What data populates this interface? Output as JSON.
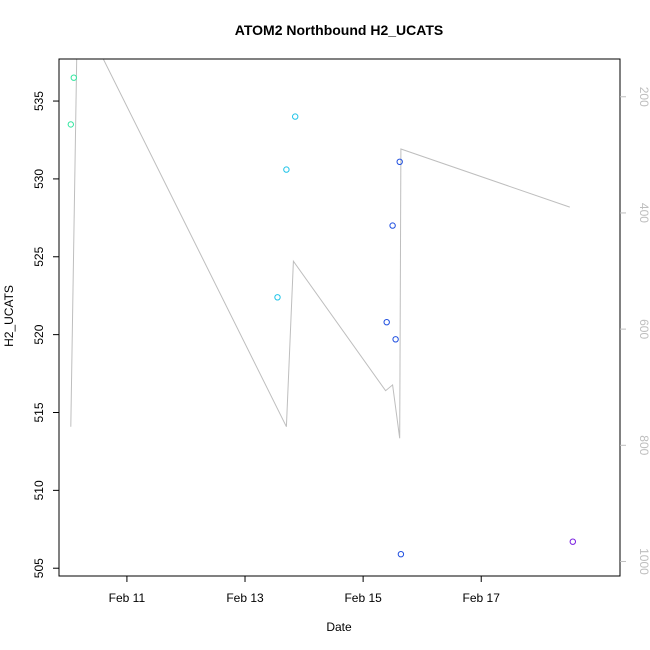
{
  "chart_data": {
    "type": "scatter",
    "title": "ATOM2 Northbound H2_UCATS",
    "xlabel": "Date",
    "ylabel": "H2_UCATS",
    "x_ticks": [
      "Feb 11",
      "Feb 13",
      "Feb 15",
      "Feb 17"
    ],
    "x_tick_days": [
      11,
      13,
      15,
      17
    ],
    "xlim": [
      9.85,
      19.35
    ],
    "ylim": [
      504.5,
      537.7
    ],
    "y_ticks": [
      505,
      510,
      515,
      520,
      525,
      530,
      535
    ],
    "y2lim": [
      1025,
      135
    ],
    "y2_ticks": [
      200,
      400,
      600,
      800,
      1000
    ],
    "points": [
      {
        "x": 10.05,
        "y": 533.5,
        "color": "#33e6a0"
      },
      {
        "x": 10.1,
        "y": 536.5,
        "color": "#33e6a0"
      },
      {
        "x": 13.55,
        "y": 522.4,
        "color": "#20c4e8"
      },
      {
        "x": 13.7,
        "y": 530.6,
        "color": "#20c4e8"
      },
      {
        "x": 13.85,
        "y": 534.0,
        "color": "#20c4e8"
      },
      {
        "x": 15.4,
        "y": 520.8,
        "color": "#2050e0"
      },
      {
        "x": 15.5,
        "y": 527.0,
        "color": "#2050e0"
      },
      {
        "x": 15.55,
        "y": 519.7,
        "color": "#2050e0"
      },
      {
        "x": 15.62,
        "y": 531.1,
        "color": "#2050e0"
      },
      {
        "x": 15.64,
        "y": 505.9,
        "color": "#2050e0"
      },
      {
        "x": 18.55,
        "y": 506.7,
        "color": "#7a20e0"
      }
    ],
    "secondary_line": {
      "color": "#bebebe",
      "x": [
        10.05,
        10.15,
        10.6,
        13.7,
        13.82,
        15.38,
        15.5,
        15.62,
        15.64,
        18.5
      ],
      "y2": [
        768,
        135,
        135,
        768,
        483,
        706,
        696,
        788,
        290,
        390
      ]
    }
  }
}
